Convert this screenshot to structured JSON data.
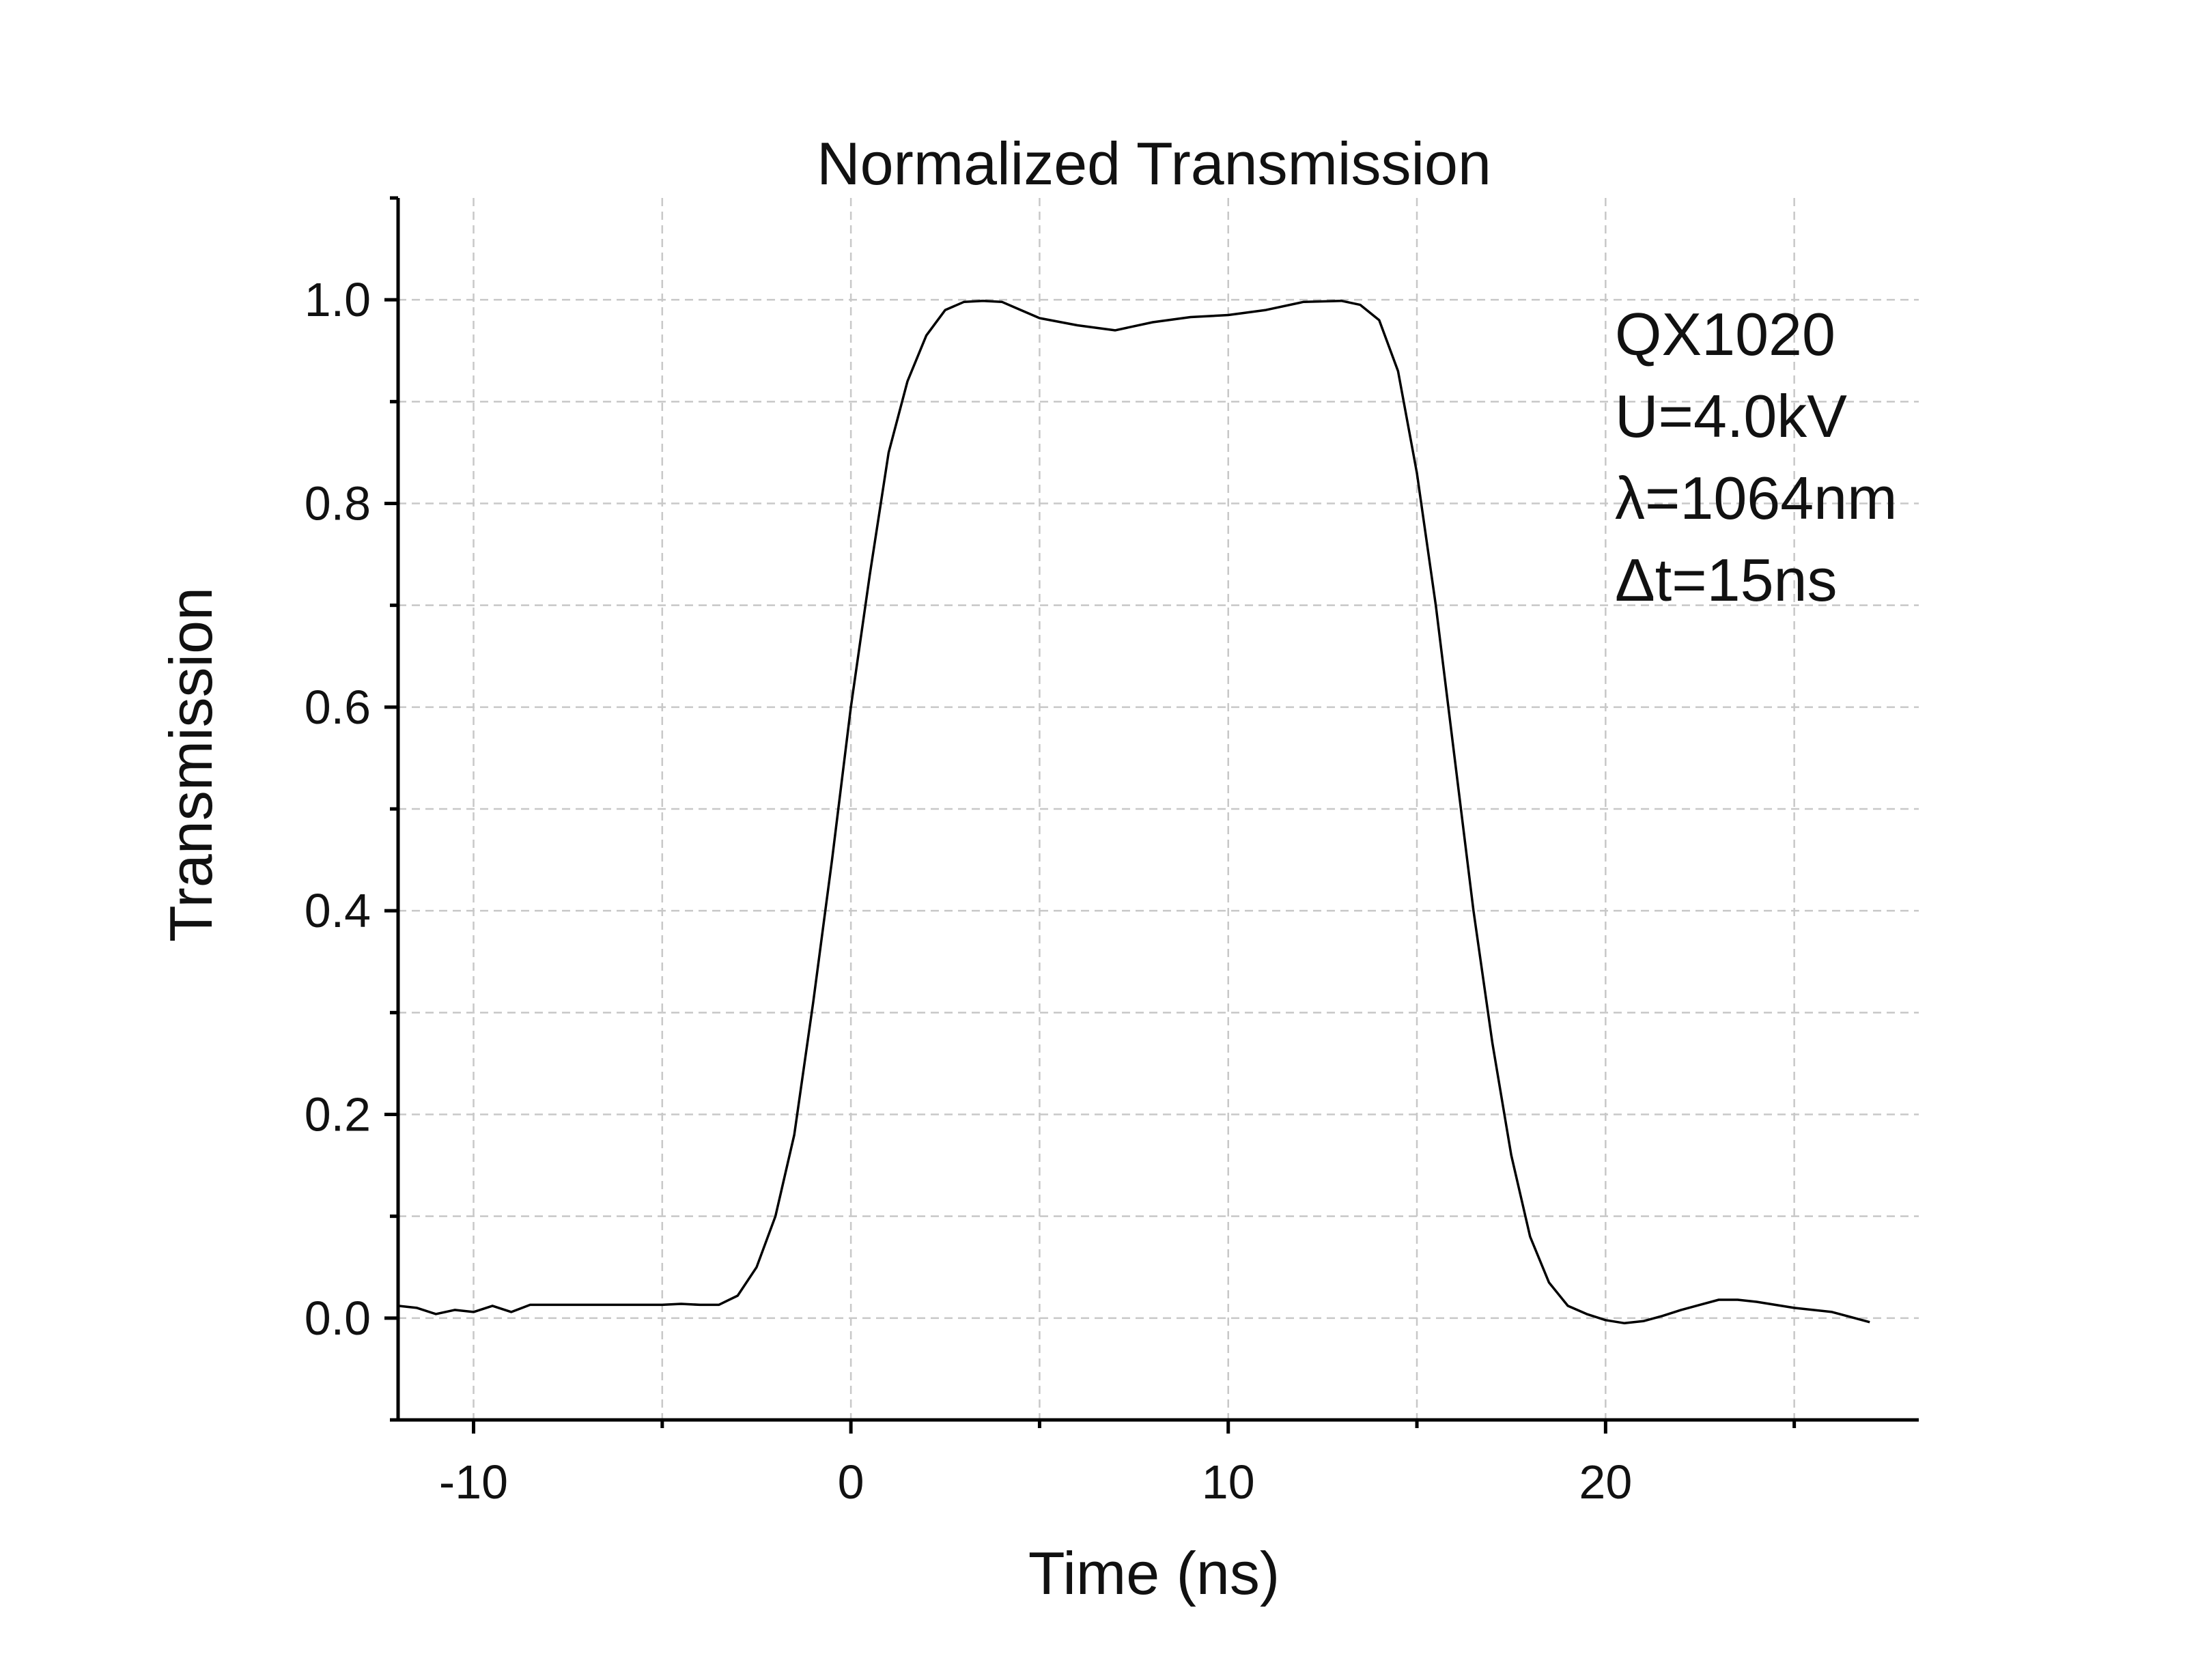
{
  "chart_data": {
    "type": "line",
    "title": "Normalized Transmission",
    "xlabel": "Time (ns)",
    "ylabel": "Transmission",
    "xlim": [
      -12,
      28.3
    ],
    "ylim": [
      -0.1,
      1.1
    ],
    "x_ticks": [
      -10,
      0,
      10,
      20
    ],
    "x_tick_labels": [
      "-10",
      "0",
      "10",
      "20"
    ],
    "y_ticks": [
      0.0,
      0.2,
      0.4,
      0.6,
      0.8,
      1.0
    ],
    "y_tick_labels": [
      "0.0",
      "0.2",
      "0.4",
      "0.6",
      "0.8",
      "1.0"
    ],
    "grid": true,
    "annotations": [
      "QX1020",
      "U=4.0kV",
      "λ=1064nm",
      "Δt=15ns"
    ],
    "colors": {
      "line": "#000000",
      "grid": "#c8c8c8",
      "axis": "#000000"
    },
    "series": [
      {
        "x": [
          -12,
          -11.5,
          -11,
          -10.5,
          -10,
          -9.5,
          -9,
          -8.5,
          -8,
          -7,
          -6,
          -5,
          -4.5,
          -4,
          -3.5,
          -3,
          -2.5,
          -2,
          -1.5,
          -1,
          -0.5,
          0,
          0.5,
          1,
          1.5,
          2,
          2.5,
          3,
          3.5,
          4,
          4.5,
          5,
          6,
          7,
          8,
          9,
          10,
          11,
          12,
          13,
          13.5,
          14,
          14.5,
          15,
          15.5,
          16,
          16.5,
          17,
          17.5,
          18,
          18.5,
          19,
          19.5,
          20,
          20.5,
          21,
          21.5,
          22,
          22.5,
          23,
          23.5,
          24,
          25,
          26,
          26.5,
          27
        ],
        "y": [
          0.012,
          0.01,
          0.004,
          0.008,
          0.006,
          0.012,
          0.006,
          0.013,
          0.013,
          0.013,
          0.013,
          0.013,
          0.014,
          0.013,
          0.013,
          0.022,
          0.05,
          0.1,
          0.18,
          0.31,
          0.45,
          0.6,
          0.73,
          0.85,
          0.92,
          0.965,
          0.99,
          0.998,
          0.999,
          0.998,
          0.99,
          0.982,
          0.975,
          0.97,
          0.978,
          0.983,
          0.985,
          0.99,
          0.998,
          0.999,
          0.995,
          0.98,
          0.93,
          0.83,
          0.7,
          0.55,
          0.4,
          0.27,
          0.16,
          0.08,
          0.035,
          0.012,
          0.004,
          -0.002,
          -0.005,
          -0.003,
          0.002,
          0.008,
          0.013,
          0.018,
          0.018,
          0.016,
          0.01,
          0.006,
          0.001,
          -0.004
        ]
      }
    ]
  }
}
